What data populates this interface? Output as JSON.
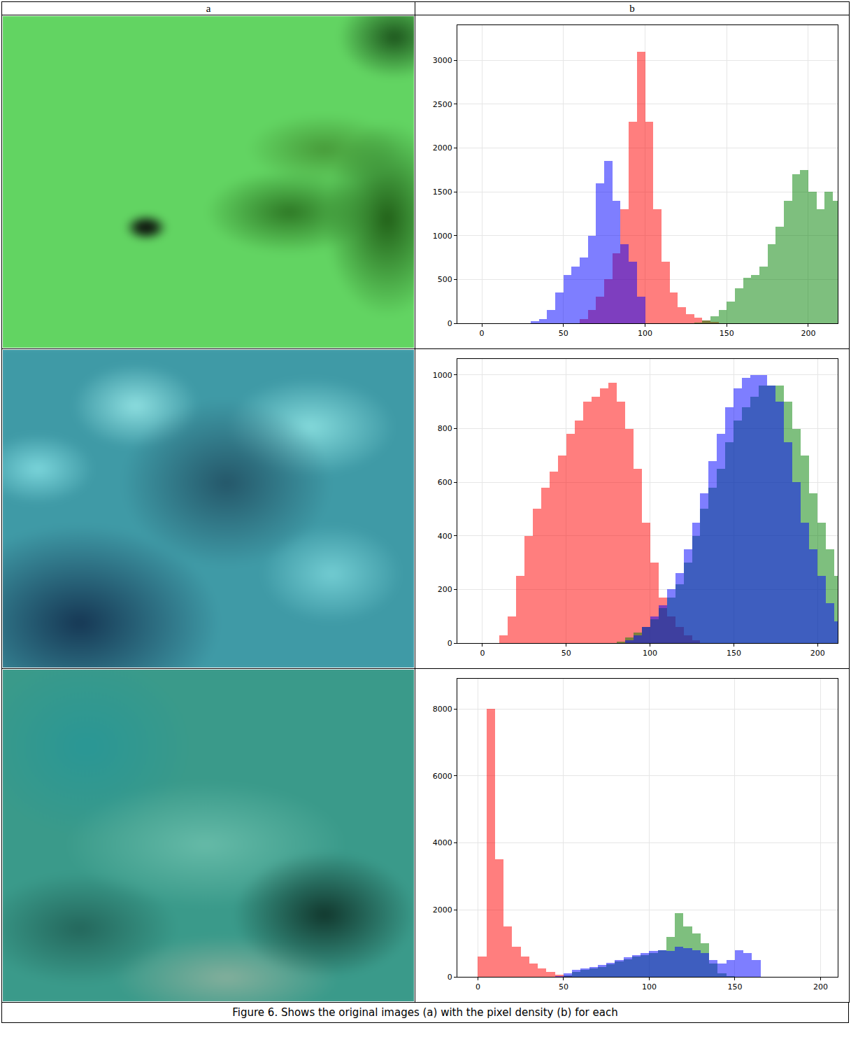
{
  "table": {
    "headers": [
      "a",
      "b"
    ]
  },
  "caption": "Figure 6. Shows the original images (a) with the pixel density (b) for each",
  "chart_data": [
    {
      "type": "histogram",
      "bins": [
        0,
        5,
        10,
        15,
        20,
        25,
        30,
        35,
        40,
        45,
        50,
        55,
        60,
        65,
        70,
        75,
        80,
        85,
        90,
        95,
        100,
        105,
        110,
        115,
        120,
        125,
        130,
        135,
        140,
        145,
        150,
        155,
        160,
        165,
        170,
        175,
        180,
        185,
        190,
        195,
        200,
        205,
        210,
        215,
        220
      ],
      "series": [
        {
          "color": "red",
          "values": [
            0,
            0,
            0,
            0,
            0,
            0,
            0,
            0,
            0,
            0,
            0,
            0,
            50,
            150,
            300,
            500,
            800,
            1300,
            2300,
            3100,
            2300,
            1300,
            700,
            350,
            180,
            100,
            60,
            30,
            15,
            0,
            0,
            0,
            0,
            0,
            0,
            0,
            0,
            0,
            0,
            0,
            0,
            0,
            0,
            0
          ]
        },
        {
          "color": "green",
          "values": [
            0,
            0,
            0,
            0,
            0,
            0,
            0,
            0,
            0,
            0,
            0,
            0,
            0,
            0,
            0,
            0,
            0,
            0,
            0,
            0,
            0,
            0,
            0,
            0,
            0,
            0,
            10,
            30,
            80,
            150,
            250,
            400,
            520,
            550,
            650,
            900,
            1100,
            1400,
            1700,
            1750,
            1500,
            1300,
            1500,
            1400
          ]
        },
        {
          "color": "blue",
          "values": [
            0,
            0,
            0,
            0,
            0,
            0,
            20,
            50,
            150,
            350,
            550,
            650,
            750,
            1000,
            1600,
            1850,
            1400,
            900,
            700,
            300,
            0,
            0,
            0,
            0,
            0,
            0,
            0,
            0,
            0,
            0,
            0,
            0,
            0,
            0,
            0,
            0,
            0,
            0,
            0,
            0,
            0,
            0,
            0,
            0
          ]
        }
      ],
      "xlim": [
        -15,
        218
      ],
      "xticks": [
        0,
        50,
        100,
        150,
        200
      ],
      "ylim": [
        0,
        3400
      ],
      "yticks": [
        0,
        500,
        1000,
        1500,
        2000,
        2500,
        3000
      ],
      "grid": true
    },
    {
      "type": "histogram",
      "bins": [
        0,
        5,
        10,
        15,
        20,
        25,
        30,
        35,
        40,
        45,
        50,
        55,
        60,
        65,
        70,
        75,
        80,
        85,
        90,
        95,
        100,
        105,
        110,
        115,
        120,
        125,
        130,
        135,
        140,
        145,
        150,
        155,
        160,
        165,
        170,
        175,
        180,
        185,
        190,
        195,
        200,
        205,
        210,
        215,
        220
      ],
      "series": [
        {
          "color": "red",
          "values": [
            0,
            0,
            30,
            100,
            250,
            400,
            500,
            580,
            640,
            700,
            780,
            830,
            900,
            920,
            950,
            970,
            900,
            800,
            650,
            450,
            300,
            170,
            100,
            60,
            30,
            10,
            0,
            0,
            0,
            0,
            0,
            0,
            0,
            0,
            0,
            0,
            0,
            0,
            0,
            0,
            0,
            0,
            0,
            0
          ]
        },
        {
          "color": "green",
          "values": [
            0,
            0,
            0,
            0,
            0,
            0,
            0,
            0,
            0,
            0,
            0,
            0,
            0,
            0,
            0,
            0,
            5,
            20,
            40,
            60,
            90,
            130,
            170,
            220,
            300,
            400,
            500,
            580,
            650,
            750,
            830,
            880,
            920,
            960,
            960,
            960,
            900,
            800,
            700,
            560,
            450,
            350,
            250,
            180
          ]
        },
        {
          "color": "blue",
          "values": [
            0,
            0,
            0,
            0,
            0,
            0,
            0,
            0,
            0,
            0,
            0,
            0,
            0,
            0,
            0,
            0,
            0,
            10,
            30,
            60,
            100,
            140,
            200,
            260,
            350,
            450,
            560,
            680,
            780,
            880,
            950,
            990,
            1000,
            1000,
            960,
            900,
            750,
            600,
            450,
            350,
            250,
            150,
            80,
            40
          ]
        }
      ],
      "xlim": [
        -15,
        212
      ],
      "xticks": [
        0,
        50,
        100,
        150,
        200
      ],
      "ylim": [
        0,
        1060
      ],
      "yticks": [
        0,
        200,
        400,
        600,
        800,
        1000
      ],
      "grid": true
    },
    {
      "type": "histogram",
      "bins": [
        0,
        5,
        10,
        15,
        20,
        25,
        30,
        35,
        40,
        45,
        50,
        55,
        60,
        65,
        70,
        75,
        80,
        85,
        90,
        95,
        100,
        105,
        110,
        115,
        120,
        125,
        130,
        135,
        140,
        145,
        150,
        155,
        160,
        165,
        170,
        175,
        180,
        185,
        190,
        195,
        200,
        205,
        210,
        215,
        220
      ],
      "series": [
        {
          "color": "red",
          "values": [
            600,
            8000,
            3500,
            1500,
            900,
            600,
            400,
            250,
            150,
            70,
            20,
            0,
            0,
            0,
            0,
            0,
            0,
            0,
            0,
            0,
            0,
            0,
            0,
            0,
            0,
            0,
            0,
            0,
            0,
            0,
            0,
            0,
            0,
            0,
            0,
            0,
            0,
            0,
            0,
            0,
            0,
            0,
            0,
            0
          ]
        },
        {
          "color": "green",
          "values": [
            0,
            0,
            0,
            0,
            0,
            0,
            0,
            0,
            0,
            0,
            50,
            150,
            200,
            250,
            300,
            380,
            450,
            520,
            600,
            650,
            700,
            800,
            1200,
            1900,
            1500,
            1300,
            1000,
            400,
            100,
            20,
            0,
            0,
            0,
            0,
            0,
            0,
            0,
            0,
            0,
            0,
            0,
            0,
            0,
            0
          ]
        },
        {
          "color": "blue",
          "values": [
            0,
            0,
            0,
            0,
            0,
            0,
            0,
            0,
            0,
            30,
            100,
            200,
            250,
            300,
            350,
            420,
            500,
            580,
            650,
            720,
            780,
            800,
            780,
            900,
            850,
            800,
            700,
            500,
            400,
            500,
            800,
            700,
            500,
            0,
            0,
            0,
            0,
            0,
            0,
            0,
            0,
            0,
            0,
            0
          ]
        }
      ],
      "xlim": [
        -12,
        210
      ],
      "xticks": [
        0,
        50,
        100,
        150,
        200
      ],
      "ylim": [
        0,
        8900
      ],
      "yticks": [
        0,
        2000,
        4000,
        6000,
        8000
      ],
      "grid": true
    }
  ]
}
